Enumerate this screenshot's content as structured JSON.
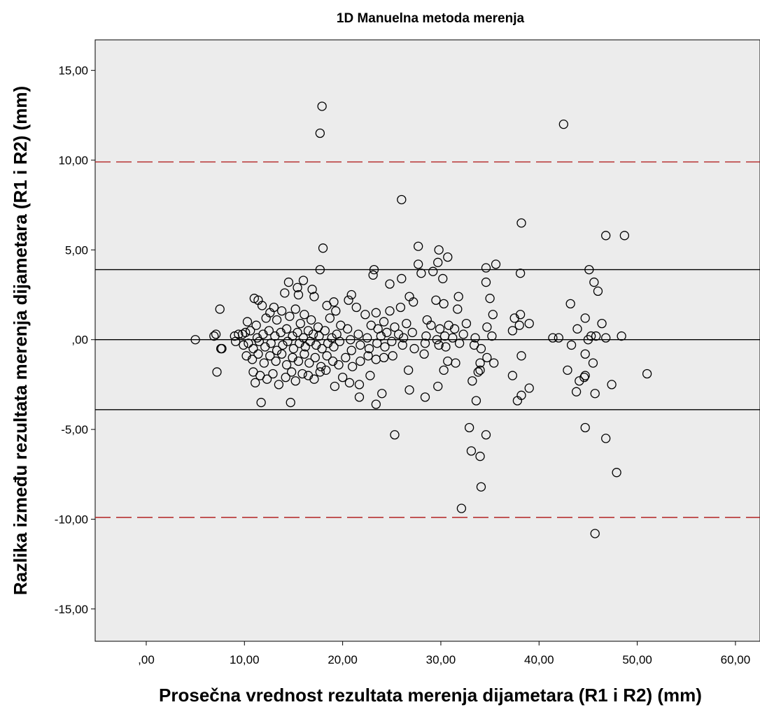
{
  "chart_data": {
    "type": "scatter",
    "title": "1D Manuelna metoda merenja",
    "xlabel": "Prosečna vrednost rezultata merenja dijametara (R1 i R2) (mm)",
    "ylabel": "Razlika između rezultata merenja dijametara (R1 i R2) (mm)",
    "xlim": [
      -5.2,
      62.5
    ],
    "ylim": [
      -16.8,
      16.7
    ],
    "x_ticks": [
      0,
      10,
      20,
      30,
      40,
      50,
      60
    ],
    "x_tick_labels": [
      ",00",
      "10,00",
      "20,00",
      "30,00",
      "40,00",
      "50,00",
      "60,00"
    ],
    "y_ticks": [
      15,
      10,
      5,
      0,
      -5,
      -10,
      -15
    ],
    "y_tick_labels": [
      "15,00",
      "10,00",
      "5,00",
      ",00",
      "-5,00",
      "-10,00",
      "-15,00"
    ],
    "grid": false,
    "background": "#ececec",
    "reference_lines": [
      {
        "y": 9.9,
        "style": "dashed",
        "color": "#b22222"
      },
      {
        "y": 3.9,
        "style": "solid",
        "color": "#000000"
      },
      {
        "y": 0.0,
        "style": "solid",
        "color": "#000000"
      },
      {
        "y": -3.9,
        "style": "solid",
        "color": "#000000"
      },
      {
        "y": -9.9,
        "style": "dashed",
        "color": "#b22222"
      }
    ],
    "marker": {
      "shape": "open-circle",
      "color": "#000000"
    },
    "points": [
      [
        5.0,
        0.0
      ],
      [
        6.9,
        0.2
      ],
      [
        7.1,
        0.3
      ],
      [
        7.2,
        -1.8
      ],
      [
        7.5,
        1.7
      ],
      [
        7.6,
        -0.5
      ],
      [
        7.7,
        -0.5
      ],
      [
        9.0,
        0.2
      ],
      [
        9.1,
        -0.1
      ],
      [
        9.4,
        0.3
      ],
      [
        17.9,
        13.0
      ],
      [
        17.7,
        11.5
      ],
      [
        42.5,
        12.0
      ],
      [
        26.0,
        7.8
      ],
      [
        38.2,
        6.5
      ],
      [
        46.8,
        5.8
      ],
      [
        48.7,
        5.8
      ],
      [
        18.0,
        5.1
      ],
      [
        27.7,
        5.2
      ],
      [
        29.8,
        5.0
      ],
      [
        30.7,
        4.6
      ],
      [
        35.6,
        4.2
      ],
      [
        27.7,
        4.2
      ],
      [
        29.7,
        4.3
      ],
      [
        17.7,
        3.9
      ],
      [
        23.2,
        3.9
      ],
      [
        23.1,
        3.6
      ],
      [
        29.2,
        3.8
      ],
      [
        28.0,
        3.7
      ],
      [
        34.6,
        4.0
      ],
      [
        38.1,
        3.7
      ],
      [
        45.1,
        3.9
      ],
      [
        14.5,
        3.2
      ],
      [
        15.4,
        2.9
      ],
      [
        16.0,
        3.3
      ],
      [
        16.9,
        2.8
      ],
      [
        17.1,
        2.4
      ],
      [
        24.8,
        3.1
      ],
      [
        26.0,
        3.4
      ],
      [
        30.2,
        3.4
      ],
      [
        34.6,
        3.2
      ],
      [
        45.6,
        3.2
      ],
      [
        14.1,
        2.6
      ],
      [
        15.5,
        2.5
      ],
      [
        19.1,
        2.1
      ],
      [
        20.9,
        2.5
      ],
      [
        20.6,
        2.2
      ],
      [
        26.8,
        2.4
      ],
      [
        27.2,
        2.1
      ],
      [
        29.5,
        2.2
      ],
      [
        30.3,
        2.0
      ],
      [
        31.8,
        2.4
      ],
      [
        35.0,
        2.3
      ],
      [
        43.2,
        2.0
      ],
      [
        46.0,
        2.7
      ],
      [
        11.0,
        2.3
      ],
      [
        11.4,
        2.2
      ],
      [
        11.8,
        1.9
      ],
      [
        13.0,
        1.8
      ],
      [
        13.8,
        1.6
      ],
      [
        12.6,
        1.5
      ],
      [
        15.2,
        1.7
      ],
      [
        16.1,
        1.4
      ],
      [
        18.4,
        1.9
      ],
      [
        19.3,
        1.6
      ],
      [
        21.4,
        1.8
      ],
      [
        22.3,
        1.4
      ],
      [
        23.4,
        1.5
      ],
      [
        24.8,
        1.6
      ],
      [
        25.9,
        1.8
      ],
      [
        31.7,
        1.7
      ],
      [
        35.3,
        1.4
      ],
      [
        37.5,
        1.2
      ],
      [
        38.1,
        1.4
      ],
      [
        39.0,
        0.9
      ],
      [
        44.7,
        1.2
      ],
      [
        46.4,
        0.9
      ],
      [
        10.3,
        1.0
      ],
      [
        11.2,
        0.8
      ],
      [
        12.2,
        1.2
      ],
      [
        13.3,
        1.1
      ],
      [
        14.6,
        1.3
      ],
      [
        15.7,
        0.9
      ],
      [
        16.8,
        1.1
      ],
      [
        17.5,
        0.7
      ],
      [
        18.7,
        1.2
      ],
      [
        19.8,
        0.8
      ],
      [
        20.5,
        0.6
      ],
      [
        22.9,
        0.8
      ],
      [
        23.6,
        0.6
      ],
      [
        24.2,
        1.0
      ],
      [
        25.3,
        0.7
      ],
      [
        26.5,
        0.9
      ],
      [
        28.6,
        1.1
      ],
      [
        29.0,
        0.8
      ],
      [
        29.9,
        0.6
      ],
      [
        30.8,
        0.8
      ],
      [
        31.4,
        0.6
      ],
      [
        32.6,
        0.9
      ],
      [
        34.7,
        0.7
      ],
      [
        37.3,
        0.5
      ],
      [
        38.0,
        0.8
      ],
      [
        43.9,
        0.6
      ],
      [
        9.8,
        0.3
      ],
      [
        10.1,
        0.4
      ],
      [
        10.6,
        0.5
      ],
      [
        11.3,
        0.1
      ],
      [
        11.9,
        0.3
      ],
      [
        12.5,
        0.5
      ],
      [
        13.1,
        0.2
      ],
      [
        13.7,
        0.4
      ],
      [
        14.3,
        0.6
      ],
      [
        14.9,
        0.2
      ],
      [
        15.4,
        0.4
      ],
      [
        16.0,
        0.1
      ],
      [
        16.5,
        0.5
      ],
      [
        17.0,
        0.3
      ],
      [
        17.6,
        0.2
      ],
      [
        18.2,
        0.5
      ],
      [
        18.9,
        0.1
      ],
      [
        19.4,
        0.3
      ],
      [
        20.8,
        0.0
      ],
      [
        21.6,
        0.3
      ],
      [
        22.5,
        0.1
      ],
      [
        23.9,
        0.2
      ],
      [
        24.5,
        0.4
      ],
      [
        25.7,
        0.3
      ],
      [
        26.2,
        0.1
      ],
      [
        27.1,
        0.4
      ],
      [
        28.5,
        0.2
      ],
      [
        29.6,
        0.0
      ],
      [
        30.4,
        0.2
      ],
      [
        31.2,
        0.1
      ],
      [
        32.3,
        0.3
      ],
      [
        33.5,
        0.1
      ],
      [
        35.2,
        0.2
      ],
      [
        41.4,
        0.1
      ],
      [
        42.0,
        0.1
      ],
      [
        45.3,
        0.2
      ],
      [
        45.8,
        0.2
      ],
      [
        46.8,
        0.1
      ],
      [
        48.4,
        0.2
      ],
      [
        45.0,
        0.0
      ],
      [
        9.9,
        -0.3
      ],
      [
        10.4,
        -0.2
      ],
      [
        10.9,
        -0.5
      ],
      [
        11.5,
        -0.1
      ],
      [
        12.1,
        -0.4
      ],
      [
        12.7,
        -0.2
      ],
      [
        13.3,
        -0.6
      ],
      [
        13.9,
        -0.3
      ],
      [
        14.4,
        -0.1
      ],
      [
        15.0,
        -0.5
      ],
      [
        15.6,
        -0.2
      ],
      [
        16.2,
        -0.4
      ],
      [
        16.7,
        -0.1
      ],
      [
        17.3,
        -0.3
      ],
      [
        17.9,
        -0.5
      ],
      [
        18.5,
        -0.2
      ],
      [
        19.1,
        -0.4
      ],
      [
        19.7,
        -0.1
      ],
      [
        20.9,
        -0.6
      ],
      [
        21.8,
        -0.3
      ],
      [
        22.7,
        -0.5
      ],
      [
        23.5,
        -0.2
      ],
      [
        24.3,
        -0.4
      ],
      [
        25.0,
        -0.1
      ],
      [
        26.1,
        -0.3
      ],
      [
        27.3,
        -0.5
      ],
      [
        28.4,
        -0.2
      ],
      [
        29.8,
        -0.3
      ],
      [
        30.5,
        -0.4
      ],
      [
        31.9,
        -0.2
      ],
      [
        33.4,
        -0.3
      ],
      [
        34.1,
        -0.5
      ],
      [
        43.3,
        -0.3
      ],
      [
        10.2,
        -0.9
      ],
      [
        10.8,
        -1.1
      ],
      [
        11.4,
        -0.8
      ],
      [
        12.0,
        -1.3
      ],
      [
        12.6,
        -0.9
      ],
      [
        13.2,
        -1.2
      ],
      [
        13.8,
        -0.8
      ],
      [
        14.3,
        -1.4
      ],
      [
        14.9,
        -1.0
      ],
      [
        15.5,
        -1.2
      ],
      [
        16.1,
        -0.8
      ],
      [
        16.6,
        -1.3
      ],
      [
        17.2,
        -1.0
      ],
      [
        17.8,
        -1.5
      ],
      [
        18.4,
        -0.9
      ],
      [
        19.0,
        -1.2
      ],
      [
        19.6,
        -1.4
      ],
      [
        20.3,
        -1.0
      ],
      [
        21.0,
        -1.5
      ],
      [
        21.8,
        -1.2
      ],
      [
        22.6,
        -0.9
      ],
      [
        23.4,
        -1.1
      ],
      [
        24.2,
        -1.0
      ],
      [
        25.1,
        -0.9
      ],
      [
        28.3,
        -0.8
      ],
      [
        30.3,
        -1.7
      ],
      [
        30.7,
        -1.2
      ],
      [
        31.5,
        -1.3
      ],
      [
        34.0,
        -1.3
      ],
      [
        34.7,
        -1.0
      ],
      [
        35.4,
        -1.3
      ],
      [
        38.2,
        -0.9
      ],
      [
        44.7,
        -0.8
      ],
      [
        45.5,
        -1.3
      ],
      [
        10.9,
        -1.8
      ],
      [
        11.1,
        -2.4
      ],
      [
        11.6,
        -2.0
      ],
      [
        12.3,
        -2.2
      ],
      [
        12.9,
        -1.9
      ],
      [
        13.5,
        -2.5
      ],
      [
        14.2,
        -2.1
      ],
      [
        14.8,
        -1.8
      ],
      [
        15.2,
        -2.3
      ],
      [
        15.9,
        -1.9
      ],
      [
        16.5,
        -2.0
      ],
      [
        17.1,
        -2.2
      ],
      [
        17.7,
        -1.8
      ],
      [
        18.3,
        -1.7
      ],
      [
        19.2,
        -2.6
      ],
      [
        20.0,
        -2.1
      ],
      [
        20.7,
        -2.4
      ],
      [
        21.7,
        -2.5
      ],
      [
        22.8,
        -2.0
      ],
      [
        24.0,
        -3.0
      ],
      [
        26.7,
        -1.7
      ],
      [
        26.8,
        -2.8
      ],
      [
        28.4,
        -3.2
      ],
      [
        29.7,
        -2.6
      ],
      [
        33.2,
        -2.3
      ],
      [
        33.8,
        -1.8
      ],
      [
        34.0,
        -1.7
      ],
      [
        37.3,
        -2.0
      ],
      [
        38.2,
        -3.1
      ],
      [
        39.0,
        -2.7
      ],
      [
        37.8,
        -3.4
      ],
      [
        42.9,
        -1.7
      ],
      [
        43.8,
        -2.9
      ],
      [
        44.1,
        -2.3
      ],
      [
        44.6,
        -2.1
      ],
      [
        44.7,
        -2.0
      ],
      [
        45.7,
        -3.0
      ],
      [
        47.4,
        -2.5
      ],
      [
        51.0,
        -1.9
      ],
      [
        11.7,
        -3.5
      ],
      [
        14.7,
        -3.5
      ],
      [
        21.7,
        -3.2
      ],
      [
        23.4,
        -3.6
      ],
      [
        33.6,
        -3.4
      ],
      [
        25.3,
        -5.3
      ],
      [
        32.9,
        -4.9
      ],
      [
        34.6,
        -5.3
      ],
      [
        44.7,
        -4.9
      ],
      [
        46.8,
        -5.5
      ],
      [
        33.1,
        -6.2
      ],
      [
        34.0,
        -6.5
      ],
      [
        34.1,
        -8.2
      ],
      [
        47.9,
        -7.4
      ],
      [
        32.1,
        -9.4
      ],
      [
        45.7,
        -10.8
      ]
    ]
  }
}
